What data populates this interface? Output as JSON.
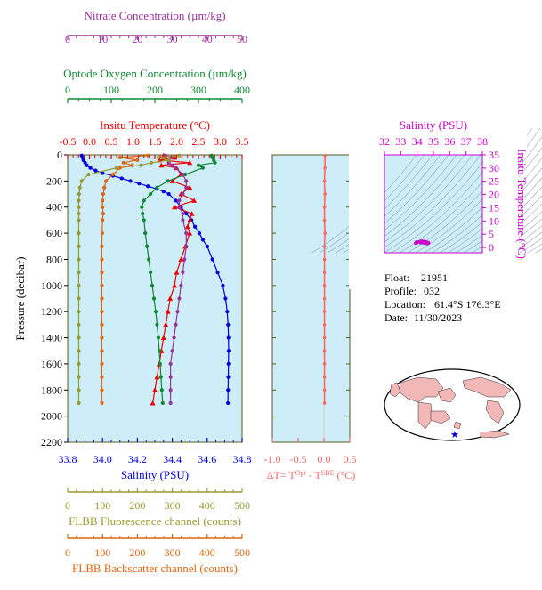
{
  "metadata": {
    "float_label": "Float:",
    "float_value": "21951",
    "profile_label": "Profile:",
    "profile_value": "032",
    "location_label": "Location:",
    "location_value": "61.4°S  176.3°E",
    "date_label": "Date:",
    "date_value": "11/30/2023"
  },
  "colors": {
    "plot_bg": "#cdeef8",
    "nitrate": "#993399",
    "oxygen": "#118833",
    "temperature": "#ee0000",
    "salinity": "#0000dd",
    "fluorescence": "#999933",
    "backscatter": "#dd6611",
    "delta_t": "#ff6666",
    "ts_axis": "#cc00cc",
    "frame": "#5a5a1e"
  },
  "chart_data": [
    {
      "id": "profile",
      "type": "line",
      "ylabel": "Pressure (decibar)",
      "ylim": [
        0,
        2200
      ],
      "yticks": [
        "0",
        "200",
        "400",
        "600",
        "800",
        "1000",
        "1200",
        "1400",
        "1600",
        "1800",
        "2000",
        "2200"
      ],
      "axes": {
        "nitrate": {
          "label": "Nitrate Concentration (µm/kg)",
          "range": [
            0,
            50
          ],
          "ticks": [
            "0",
            "10",
            "20",
            "30",
            "40",
            "50"
          ]
        },
        "oxygen": {
          "label": "Optode Oxygen Concentration (µm/kg)",
          "range": [
            0,
            400
          ],
          "ticks": [
            "0",
            "100",
            "200",
            "300",
            "400"
          ]
        },
        "temperature": {
          "label": "Insitu Temperature (°C)",
          "range": [
            -0.5,
            3.5
          ],
          "ticks": [
            "-0.5",
            "0.0",
            "0.5",
            "1.0",
            "1.5",
            "2.0",
            "2.5",
            "3.0",
            "3.5"
          ]
        },
        "salinity": {
          "label": "Salinity (PSU)",
          "range": [
            33.8,
            34.8
          ],
          "ticks": [
            "33.8",
            "34.0",
            "34.2",
            "34.4",
            "34.6",
            "34.8"
          ]
        },
        "fluorescence": {
          "label": "FLBB Fluorescence channel (counts)",
          "range": [
            0,
            500
          ],
          "ticks": [
            "0",
            "100",
            "200",
            "300",
            "400",
            "500"
          ]
        },
        "backscatter": {
          "label": "FLBB Backscatter channel (counts)",
          "range": [
            0,
            500
          ],
          "ticks": [
            "0",
            "100",
            "200",
            "300",
            "400",
            "500"
          ]
        }
      },
      "series": [
        {
          "key": "salinity",
          "marker": "circle",
          "p": [
            5,
            20,
            40,
            60,
            80,
            100,
            120,
            140,
            160,
            180,
            200,
            220,
            240,
            260,
            280,
            300,
            350,
            400,
            450,
            500,
            550,
            600,
            650,
            700,
            800,
            900,
            1000,
            1100,
            1200,
            1300,
            1400,
            1500,
            1600,
            1700,
            1800,
            1900
          ],
          "v": [
            33.88,
            33.885,
            33.89,
            33.9,
            33.91,
            33.93,
            33.96,
            34.0,
            34.06,
            34.11,
            34.16,
            34.21,
            34.26,
            34.31,
            34.35,
            34.38,
            34.42,
            34.45,
            34.48,
            34.51,
            34.53,
            34.555,
            34.575,
            34.6,
            34.63,
            34.66,
            34.69,
            34.705,
            34.715,
            34.72,
            34.722,
            34.723,
            34.722,
            34.721,
            34.72,
            34.719
          ]
        },
        {
          "key": "temperature",
          "marker": "triangle",
          "p": [
            5,
            20,
            40,
            60,
            80,
            100,
            150,
            200,
            250,
            300,
            350,
            400,
            450,
            500,
            550,
            600,
            700,
            800,
            900,
            1000,
            1100,
            1200,
            1300,
            1400,
            1500,
            1600,
            1700,
            1800,
            1900
          ],
          "v": [
            1.7,
            1.95,
            1.6,
            2.3,
            1.65,
            2.0,
            2.1,
            1.9,
            2.3,
            2.1,
            2.4,
            1.95,
            2.35,
            2.3,
            2.25,
            2.3,
            2.2,
            2.1,
            2.0,
            1.95,
            1.85,
            1.8,
            1.75,
            1.7,
            1.65,
            1.6,
            1.55,
            1.5,
            1.45
          ]
        },
        {
          "key": "oxygen",
          "marker": "circle",
          "p": [
            5,
            20,
            40,
            60,
            80,
            100,
            150,
            200,
            250,
            300,
            350,
            400,
            450,
            500,
            600,
            700,
            800,
            900,
            1000,
            1100,
            1200,
            1300,
            1400,
            1500,
            1600,
            1700,
            1800,
            1900
          ],
          "v": [
            330,
            332,
            335,
            338,
            300,
            310,
            270,
            230,
            205,
            190,
            175,
            170,
            172,
            175,
            178,
            182,
            186,
            190,
            194,
            198,
            202,
            205,
            208,
            210,
            212,
            214,
            216,
            218
          ]
        },
        {
          "key": "nitrate",
          "marker": "circle",
          "p": [
            5,
            20,
            40,
            60,
            80,
            100,
            150,
            200,
            250,
            300,
            350,
            400,
            450,
            500,
            600,
            700,
            800,
            900,
            1000,
            1100,
            1200,
            1300,
            1400,
            1500,
            1600,
            1700,
            1800,
            1900
          ],
          "v": [
            28,
            30,
            29,
            29,
            30,
            31,
            33,
            34,
            34,
            33,
            32,
            32,
            33,
            33,
            34,
            34,
            33.5,
            33,
            32.5,
            32,
            31.5,
            31,
            30.5,
            30,
            29.5,
            29.5,
            29.5,
            29.5
          ]
        },
        {
          "key": "fluorescence",
          "marker": "circle",
          "p": [
            5,
            20,
            40,
            60,
            80,
            100,
            150,
            200,
            250,
            300,
            350,
            400,
            450,
            500,
            600,
            700,
            800,
            900,
            1000,
            1100,
            1200,
            1300,
            1400,
            1500,
            1600,
            1700,
            1800,
            1900
          ],
          "v": [
            320,
            260,
            290,
            240,
            210,
            140,
            60,
            40,
            35,
            33,
            32,
            32,
            32,
            32,
            32,
            32,
            32,
            32,
            32,
            32,
            32,
            32,
            32,
            32,
            32,
            32,
            32,
            32
          ]
        },
        {
          "key": "backscatter",
          "marker": "circle",
          "p": [
            5,
            20,
            40,
            60,
            80,
            100,
            150,
            200,
            250,
            300,
            350,
            400,
            450,
            500,
            600,
            700,
            800,
            900,
            1000,
            1100,
            1200,
            1300,
            1400,
            1500,
            1600,
            1700,
            1800,
            1900
          ],
          "v": [
            230,
            150,
            200,
            160,
            185,
            150,
            130,
            110,
            105,
            102,
            100,
            100,
            102,
            100,
            99,
            98,
            98,
            98,
            98,
            98,
            98,
            98,
            98,
            98,
            98,
            98,
            98,
            98
          ]
        }
      ]
    },
    {
      "id": "delta_t",
      "type": "line",
      "xlabel": "ΔT= T",
      "xlabel_sup1": "Opt",
      "xlabel_mid": " - T",
      "xlabel_sup2": "SBE",
      "xlabel_end": " (°C)",
      "xlim": [
        -1.0,
        0.5
      ],
      "xticks": [
        "-1.0",
        "-0.5",
        "0.0",
        "0.5"
      ],
      "series": [
        {
          "name": "",
          "p": [
            5,
            100,
            200,
            300,
            400,
            500,
            600,
            700,
            800,
            900,
            1000,
            1100,
            1200,
            1300,
            1400,
            1500,
            1600,
            1700,
            1800,
            1900
          ],
          "v": [
            0.02,
            0.02,
            0.01,
            0.02,
            0.01,
            0.01,
            0.02,
            0.01,
            0.01,
            0.01,
            0.01,
            0.01,
            0.01,
            0.01,
            0.01,
            0.01,
            0.01,
            0.01,
            0.01,
            0.01
          ]
        }
      ]
    },
    {
      "id": "ts_diagram",
      "type": "scatter",
      "xlabel": "Salinity (PSU)",
      "ylabel": "Insitu Temperature (°C)",
      "xlim": [
        32,
        38
      ],
      "ylim": [
        -2,
        35
      ],
      "xticks": [
        "32",
        "33",
        "34",
        "35",
        "36",
        "37",
        "38"
      ],
      "yticks": [
        "0",
        "5",
        "10",
        "15",
        "20",
        "25",
        "30",
        "35"
      ],
      "points_s": [
        33.9,
        34.0,
        34.1,
        34.2,
        34.3,
        34.4,
        34.5,
        34.6,
        34.7,
        34.7,
        34.65,
        34.55,
        34.45,
        34.35,
        34.2,
        34.0,
        33.95
      ],
      "points_t": [
        1.6,
        1.9,
        2.1,
        2.3,
        2.4,
        2.3,
        2.2,
        2.0,
        1.8,
        1.6,
        1.5,
        1.5,
        1.6,
        1.7,
        1.8,
        1.9,
        2.0
      ]
    }
  ]
}
